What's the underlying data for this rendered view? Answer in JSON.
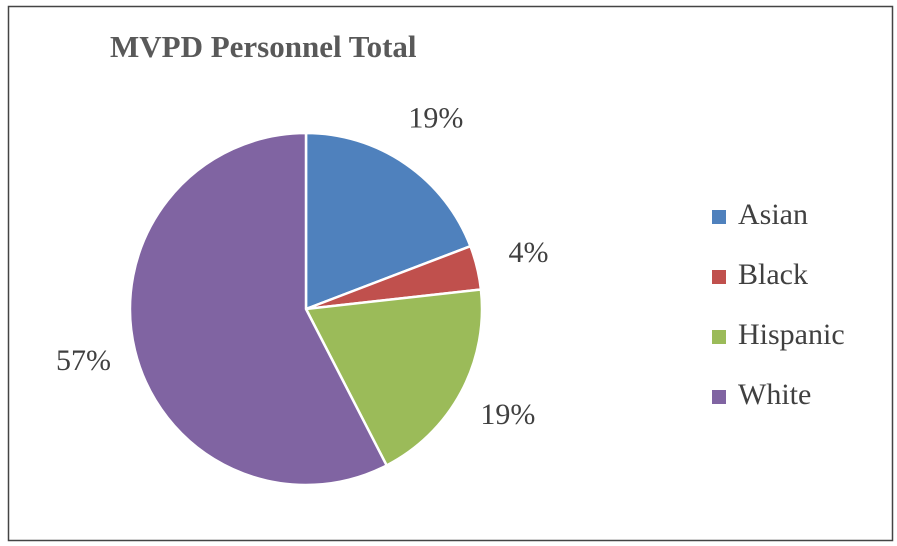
{
  "chart_data": {
    "type": "pie",
    "title": "MVPD Personnel Total",
    "categories": [
      "Asian",
      "Black",
      "Hispanic",
      "White"
    ],
    "values": [
      19,
      4,
      19,
      57
    ],
    "value_labels": [
      "19%",
      "4%",
      "19%",
      "57%"
    ],
    "colors": [
      "#4f81bd",
      "#c0504d",
      "#9bbb59",
      "#8064a2"
    ],
    "legend": "right"
  }
}
